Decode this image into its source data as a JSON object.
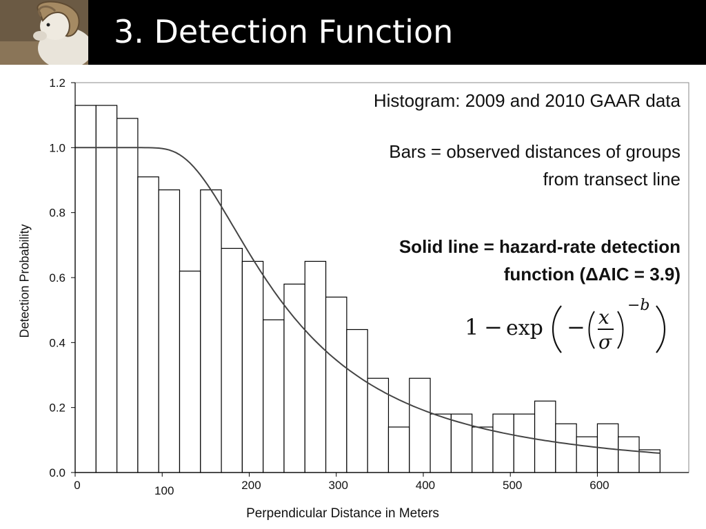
{
  "slide": {
    "title": "3. Detection Function",
    "header_bg": "#000000",
    "header_image": "sheep-photo"
  },
  "annotations": {
    "histogram_note": "Histogram: 2009 and 2010 GAAR data",
    "bars_note_line1": "Bars = observed distances of groups",
    "bars_note_line2": "from transect line",
    "line_note_line1": "Solid line = hazard-rate detection",
    "line_note_line2": "function (ΔAIC = 3.9)",
    "formula": {
      "one": "1",
      "minus": "−",
      "exp": "exp",
      "neg": "−",
      "x": "x",
      "sigma": "σ",
      "exponent": "−b"
    }
  },
  "chart_data": {
    "type": "bar",
    "xlabel": "Perpendicular Distance in Meters",
    "ylabel": "Detection Probability",
    "xlim": [
      0,
      705
    ],
    "ylim": [
      0,
      1.2
    ],
    "x_ticks": [
      "0",
      "100",
      "200",
      "300",
      "400",
      "500",
      "600"
    ],
    "y_ticks": [
      "0.0",
      "0.2",
      "0.4",
      "0.6",
      "0.8",
      "1.0",
      "1.2"
    ],
    "grid": false,
    "bin_edges": [
      0,
      24,
      48,
      72,
      96,
      120,
      144,
      168,
      192,
      216,
      240,
      264,
      288,
      312,
      336,
      360,
      384,
      408,
      432,
      456,
      480,
      504,
      528,
      552,
      576,
      600,
      624,
      648
    ],
    "values": [
      1.13,
      1.13,
      1.09,
      0.91,
      0.87,
      0.62,
      0.87,
      0.69,
      0.65,
      0.47,
      0.58,
      0.65,
      0.54,
      0.44,
      0.29,
      0.14,
      0.29,
      0.18,
      0.18,
      0.14,
      0.18,
      0.18,
      0.22,
      0.15,
      0.11,
      0.15,
      0.11,
      0.07
    ],
    "bar_color": "#ffffff",
    "bar_edge_color": "#000000",
    "curve": {
      "model": "hazard-rate",
      "x_start": 0,
      "x_end": 672,
      "sigma": 210,
      "b": 2.4,
      "color": "#444444"
    }
  }
}
